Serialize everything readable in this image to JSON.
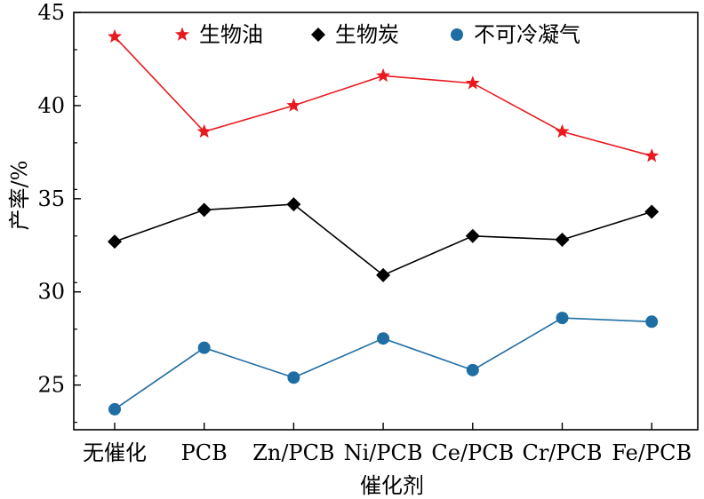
{
  "chart_data": {
    "type": "line",
    "categories": [
      "无催化",
      "PCB",
      "Zn/PCB",
      "Ni/PCB",
      "Ce/PCB",
      "Cr/PCB",
      "Fe/PCB"
    ],
    "series": [
      {
        "name": "生物油",
        "values": [
          43.7,
          38.6,
          40.0,
          41.6,
          41.2,
          38.6,
          37.3
        ],
        "color": "#e8191f",
        "marker": "star"
      },
      {
        "name": "生物炭",
        "values": [
          32.7,
          34.4,
          34.7,
          30.9,
          33.0,
          32.8,
          34.3
        ],
        "color": "#000000",
        "marker": "diamond"
      },
      {
        "name": "不可冷凝气",
        "values": [
          23.7,
          27.0,
          25.4,
          27.5,
          25.8,
          28.6,
          28.4
        ],
        "color": "#1f6ea3",
        "marker": "circle"
      }
    ],
    "xlabel": "催化剂",
    "ylabel": "产率/%",
    "ylim": [
      22.6,
      45
    ],
    "yticks": [
      25,
      30,
      35,
      40,
      45
    ],
    "grid": false,
    "legend_position": "top"
  }
}
